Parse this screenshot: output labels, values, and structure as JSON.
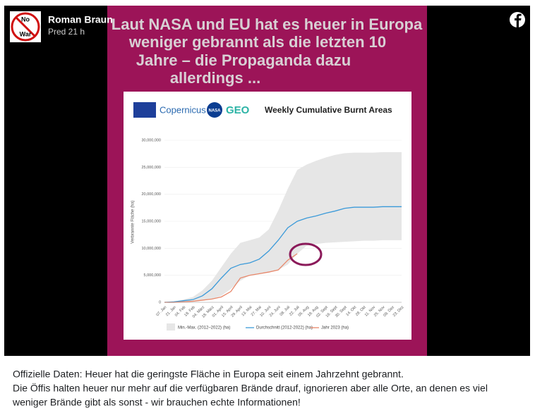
{
  "post": {
    "author": "Roman Braun",
    "time": "Pred 21 h",
    "avatar_text": [
      "No",
      "War"
    ],
    "caption": [
      "Offizielle Daten: Heuer hat die geringste Fläche in Europa seit einem Jahrzehnt gebrannt.",
      "Die Öffis halten heuer nur mehr auf die verfügbaren Brände drauf, ignorieren aber alle Orte, an denen es viel",
      "weniger Brände gibt als sonst - wir brauchen echte Informationen!"
    ],
    "headline": [
      "Laut NASA und EU hat es heuer in Europa",
      "weniger gebrannt als die letzten 10",
      "Jahre – die Propaganda dazu",
      "allerdings ..."
    ],
    "logos": [
      "Copernicus",
      "NASA",
      "GEO"
    ]
  },
  "chart_data": {
    "type": "line",
    "title": "Weekly Cumulative Burnt Areas",
    "y_label": "Verbrannte Fläche (ha)",
    "categories": [
      "07. Jan",
      "21. Jan",
      "04. Feb",
      "18. Feb",
      "04. März",
      "18. März",
      "01. April",
      "15. April",
      "29. April",
      "13. Mai",
      "27. Mai",
      "10. Juni",
      "24. Juni",
      "08. Juli",
      "22. Juli",
      "05. Aug",
      "19. Aug",
      "02. Sept",
      "16. Sept",
      "30. Sept",
      "14. Okt",
      "28. Okt",
      "11. Nov",
      "25. Nov",
      "09. Dez",
      "23. Dez"
    ],
    "band": {
      "name": "Min.-Max. (2012–2022) (ha)",
      "color": "#e6e6e6",
      "upper": [
        0,
        100000,
        500000,
        1000000,
        2200000,
        4000000,
        6500000,
        9000000,
        11000000,
        11500000,
        12000000,
        13500000,
        17000000,
        21000000,
        24500000,
        25500000,
        26200000,
        26800000,
        27300000,
        27600000,
        27700000,
        27700000,
        27700000,
        27800000,
        27800000,
        27800000
      ],
      "lower": [
        0,
        0,
        0,
        100000,
        300000,
        600000,
        1200000,
        2500000,
        4000000,
        5000000,
        5200000,
        5500000,
        6000000,
        7000000,
        9000000,
        10500000,
        10800000,
        11000000,
        11100000,
        11200000,
        11300000,
        11400000,
        11400000,
        11500000,
        11500000,
        11500000
      ]
    },
    "series": [
      {
        "name": "Durchschnitt (2012-2022) (ha)",
        "color": "#3b9ad9",
        "values": [
          0,
          100000,
          300000,
          500000,
          1200000,
          2500000,
          4500000,
          6300000,
          7000000,
          7300000,
          8000000,
          9500000,
          11500000,
          13800000,
          15000000,
          15600000,
          16000000,
          16500000,
          16900000,
          17400000,
          17600000,
          17600000,
          17600000,
          17700000,
          17700000,
          17700000
        ]
      },
      {
        "name": "Jahr 2023 (ha)",
        "color": "#e8876a",
        "values": [
          0,
          0,
          100000,
          200000,
          400000,
          600000,
          1000000,
          2000000,
          4500000,
          5000000,
          5300000,
          5600000,
          6000000,
          7800000,
          9000000,
          null,
          null,
          null,
          null,
          null,
          null,
          null,
          null,
          null,
          null,
          null
        ]
      }
    ],
    "ylim": [
      0,
      30000000
    ],
    "yticks": [
      0,
      {
        "value": 5000000,
        "label": "5,000,000"
      },
      {
        "value": 10000000,
        "label": "10,000,000"
      },
      {
        "value": 15000000,
        "label": "15,000,000"
      },
      {
        "value": 20000000,
        "label": "20,000,000"
      },
      {
        "value": 25000000,
        "label": "25,000,000"
      },
      {
        "value": 30000000,
        "label": "30,000,000"
      }
    ],
    "grid": true
  }
}
